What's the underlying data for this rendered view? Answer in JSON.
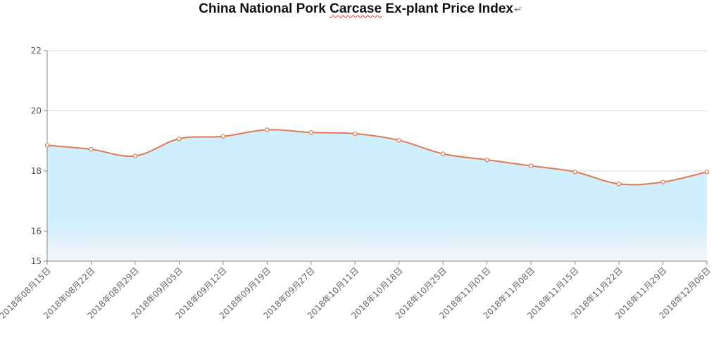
{
  "chart_data": {
    "type": "area",
    "title_before": "China National Pork ",
    "title_flagged": "Carcase",
    "title_after": " Ex-plant Price Index",
    "title_mark": "↵",
    "xlabel": "",
    "ylabel": "",
    "ylim": [
      15,
      22
    ],
    "yticks": [
      15,
      16,
      18,
      20,
      22
    ],
    "grid": true,
    "categories": [
      "2018年08月15日",
      "2018年08月22日",
      "2018年08月29日",
      "2018年09月05日",
      "2018年09月12日",
      "2018年09月19日",
      "2018年09月27日",
      "2018年10月11日",
      "2018年10月18日",
      "2018年10月25日",
      "2018年11月01日",
      "2018年11月08日",
      "2018年11月15日",
      "2018年11月22日",
      "2018年11月29日",
      "2018年12月06日"
    ],
    "values": [
      18.85,
      18.72,
      18.5,
      19.07,
      19.15,
      19.37,
      19.28,
      19.24,
      19.02,
      18.57,
      18.37,
      18.17,
      17.97,
      17.57,
      17.63,
      17.97
    ],
    "colors": {
      "line": "#e07a52",
      "marker_fill": "#ffffff",
      "area_top": "#cfeefe",
      "area_bottom": "#f7f7f7",
      "grid": "#d9d9d9",
      "axis": "#888888"
    }
  }
}
